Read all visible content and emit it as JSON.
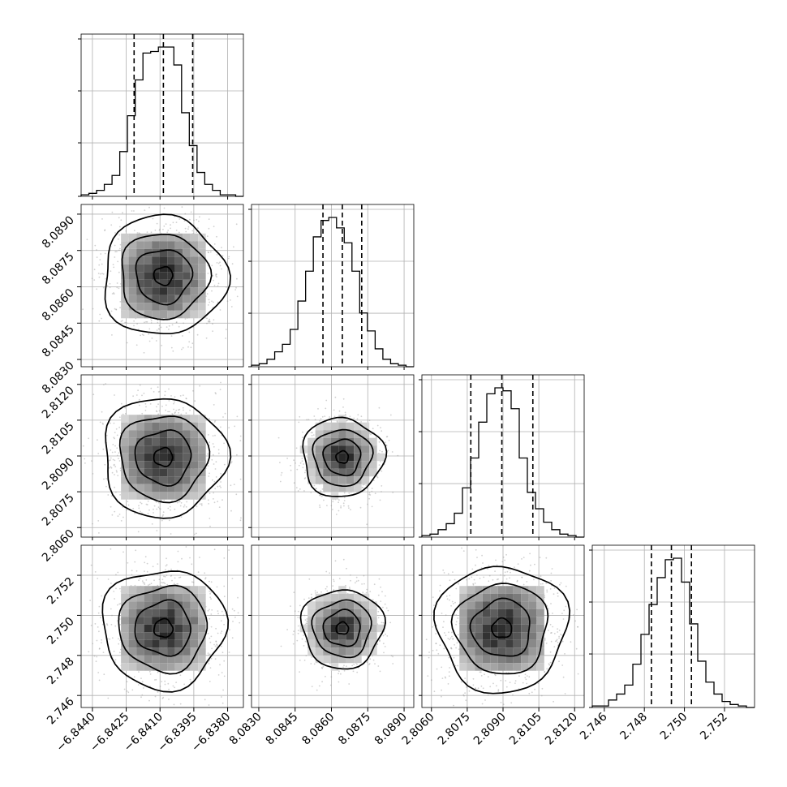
{
  "chart_data": {
    "type": "corner",
    "parameters": [
      {
        "range": [
          -6.8445,
          -6.8373
        ],
        "ticks": [
          -6.844,
          -6.8425,
          -6.841,
          -6.8395,
          -6.838
        ],
        "tick_labels": [
          "−6.8440",
          "−6.8425",
          "−6.8410",
          "−6.8395",
          "−6.8380"
        ],
        "quantiles": [
          -6.84215,
          -6.84085,
          -6.83955
        ],
        "hist": [
          0.01,
          0.02,
          0.04,
          0.08,
          0.14,
          0.3,
          0.54,
          0.78,
          0.96,
          0.97,
          1.0,
          1.0,
          0.88,
          0.56,
          0.34,
          0.16,
          0.08,
          0.04,
          0.01,
          0.01,
          0.0
        ]
      },
      {
        "range": [
          8.0827,
          8.0894
        ],
        "ticks": [
          8.083,
          8.0845,
          8.086,
          8.0875,
          8.089
        ],
        "tick_labels": [
          "8.0830",
          "8.0845",
          "8.0860",
          "8.0875",
          "8.0890"
        ],
        "quantiles": [
          8.08565,
          8.08645,
          8.08725
        ],
        "hist": [
          0.01,
          0.02,
          0.05,
          0.1,
          0.15,
          0.25,
          0.44,
          0.64,
          0.87,
          0.98,
          1.0,
          0.93,
          0.83,
          0.64,
          0.36,
          0.24,
          0.12,
          0.05,
          0.02,
          0.01,
          0.0
        ]
      },
      {
        "range": [
          2.8056,
          2.8124
        ],
        "ticks": [
          2.806,
          2.8075,
          2.809,
          2.8105,
          2.812
        ],
        "tick_labels": [
          "2.8060",
          "2.8075",
          "2.8090",
          "2.8105",
          "2.8120"
        ],
        "quantiles": [
          2.80765,
          2.80895,
          2.81025
        ],
        "hist": [
          0.01,
          0.02,
          0.05,
          0.09,
          0.16,
          0.33,
          0.53,
          0.77,
          0.96,
          1.0,
          0.98,
          0.86,
          0.53,
          0.3,
          0.19,
          0.1,
          0.05,
          0.02,
          0.01,
          0.0
        ]
      },
      {
        "range": [
          2.7454,
          2.7535
        ],
        "ticks": [
          2.746,
          2.748,
          2.75,
          2.752
        ],
        "tick_labels": [
          "2.746",
          "2.748",
          "2.750",
          "2.752"
        ],
        "quantiles": [
          2.74835,
          2.74935,
          2.75035
        ],
        "hist": [
          0.01,
          0.01,
          0.05,
          0.09,
          0.15,
          0.29,
          0.49,
          0.69,
          0.87,
          0.99,
          1.0,
          0.84,
          0.56,
          0.31,
          0.17,
          0.09,
          0.04,
          0.02,
          0.01,
          0.0
        ]
      }
    ],
    "hist_quantiles": [
      0.16,
      0.5,
      0.84
    ],
    "contour_levels": [
      0.12,
      0.4,
      0.75,
      0.97
    ],
    "grid": true,
    "xlabel": "",
    "ylabel": "",
    "title": ""
  }
}
